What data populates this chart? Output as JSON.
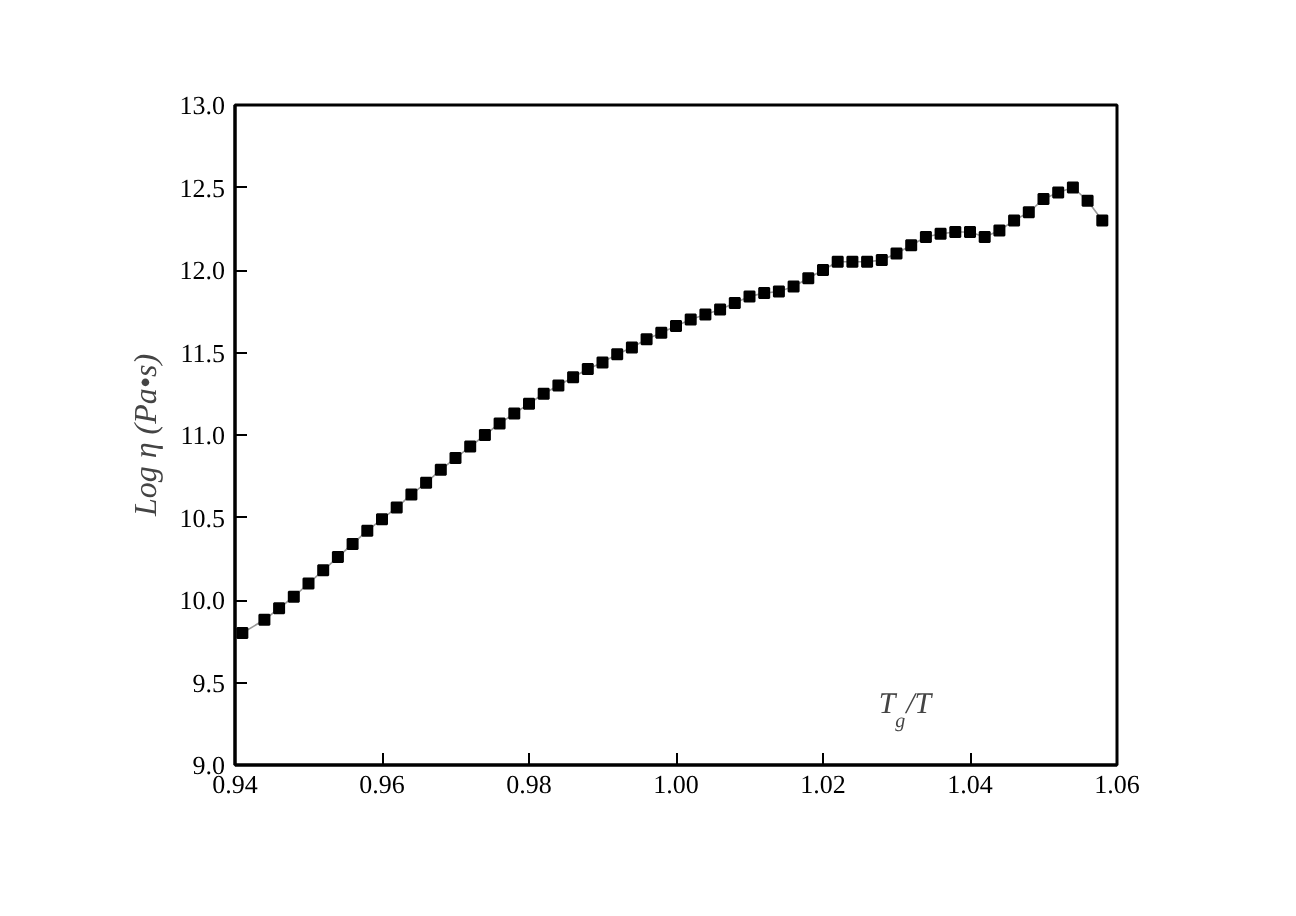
{
  "chart_data": {
    "type": "line",
    "marker": "square",
    "xlabel": "T$_{g}$/T",
    "ylabel": "Log η (Pa•s)",
    "x": [
      0.941,
      0.944,
      0.946,
      0.948,
      0.95,
      0.952,
      0.954,
      0.956,
      0.958,
      0.96,
      0.962,
      0.964,
      0.966,
      0.968,
      0.97,
      0.972,
      0.974,
      0.976,
      0.978,
      0.98,
      0.982,
      0.984,
      0.986,
      0.988,
      0.99,
      0.992,
      0.994,
      0.996,
      0.998,
      1.0,
      1.002,
      1.004,
      1.006,
      1.008,
      1.01,
      1.012,
      1.014,
      1.016,
      1.018,
      1.02,
      1.022,
      1.024,
      1.026,
      1.028,
      1.03,
      1.032,
      1.034,
      1.036,
      1.038,
      1.04,
      1.042,
      1.044,
      1.046,
      1.048,
      1.05,
      1.052,
      1.054,
      1.056,
      1.058
    ],
    "series": [
      {
        "color": "#000000",
        "values": [
          9.8,
          9.88,
          9.95,
          10.02,
          10.1,
          10.18,
          10.26,
          10.34,
          10.42,
          10.49,
          10.56,
          10.64,
          10.71,
          10.79,
          10.86,
          10.93,
          11.0,
          11.07,
          11.13,
          11.19,
          11.25,
          11.3,
          11.35,
          11.4,
          11.44,
          11.49,
          11.53,
          11.58,
          11.62,
          11.66,
          11.7,
          11.73,
          11.76,
          11.8,
          11.84,
          11.86,
          11.87,
          11.9,
          11.95,
          12.0,
          12.05,
          12.05,
          12.05,
          12.06,
          12.1,
          12.15,
          12.2,
          12.22,
          12.23,
          12.23,
          12.2,
          12.24,
          12.3,
          12.35,
          12.43,
          12.47,
          12.5,
          12.42,
          12.3
        ]
      }
    ],
    "xlim": [
      0.94,
      1.06
    ],
    "ylim": [
      9.0,
      13.0
    ],
    "xticks": [
      {
        "value": 0.94,
        "label": "0.94"
      },
      {
        "value": 0.96,
        "label": "0.96"
      },
      {
        "value": 0.98,
        "label": "0.98"
      },
      {
        "value": 1.0,
        "label": "1.00"
      },
      {
        "value": 1.02,
        "label": "1.02"
      },
      {
        "value": 1.04,
        "label": "1.04"
      },
      {
        "value": 1.06,
        "label": "1.06"
      }
    ],
    "yticks": [
      {
        "value": 9.0,
        "label": "9.0"
      },
      {
        "value": 9.5,
        "label": "9.5"
      },
      {
        "value": 10.0,
        "label": "10.0"
      },
      {
        "value": 10.5,
        "label": "10.5"
      },
      {
        "value": 11.0,
        "label": "11.0"
      },
      {
        "value": 11.5,
        "label": "11.5"
      },
      {
        "value": 12.0,
        "label": "12.0"
      },
      {
        "value": 12.5,
        "label": "12.5"
      },
      {
        "value": 13.0,
        "label": "13.0"
      }
    ]
  }
}
